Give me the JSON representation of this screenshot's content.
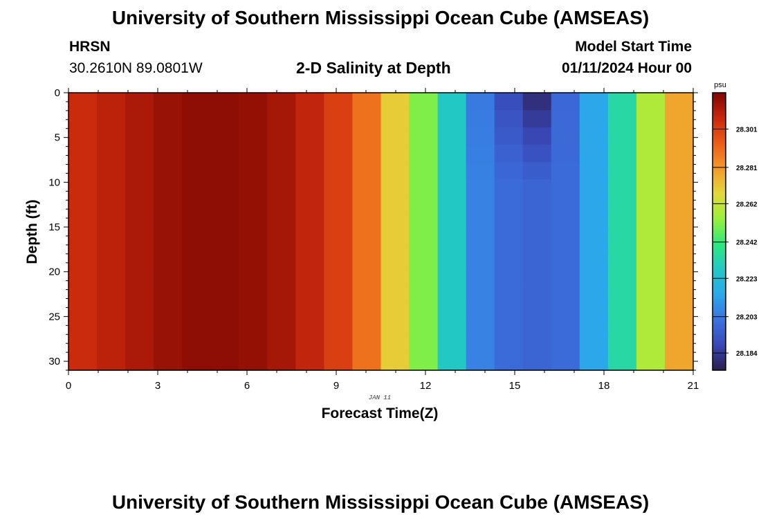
{
  "page": {
    "title_top": "University of Southern Mississippi Ocean Cube (AMSEAS)",
    "title_bottom": "University of Southern Mississippi Ocean Cube (AMSEAS)",
    "station": "HRSN",
    "coordinates": "30.2610N  89.0801W",
    "plot_title": "2-D Salinity at Depth",
    "model_start_label": "Model Start Time",
    "model_start_value": "01/11/2024 Hour 00",
    "date_tag": "JAN 11"
  },
  "chart_data": {
    "type": "heatmap",
    "title": "2-D Salinity at Depth",
    "xlabel": "Forecast Time(Z)",
    "ylabel": "Depth (ft)",
    "xlim": [
      0,
      21
    ],
    "ylim": [
      0,
      31
    ],
    "x_ticks": [
      0,
      3,
      6,
      9,
      12,
      15,
      18,
      21
    ],
    "y_ticks": [
      0,
      5,
      10,
      15,
      20,
      25,
      30
    ],
    "colorbar": {
      "unit": "psu",
      "ticks": [
        "28.301",
        "28.281",
        "28.262",
        "28.242",
        "28.223",
        "28.203",
        "28.184"
      ],
      "range": [
        28.175,
        28.32
      ],
      "colors": [
        "#2a1e4e",
        "#3948b8",
        "#3b73e0",
        "#2ba9ea",
        "#22c8c6",
        "#2ee87c",
        "#98f03a",
        "#e4d83a",
        "#f39a2a",
        "#ec5c18",
        "#c8280c",
        "#7d0502"
      ]
    },
    "time_bins": [
      0,
      1,
      2,
      3,
      4,
      5,
      6,
      7,
      8,
      9,
      10,
      11,
      12,
      13,
      14,
      15,
      16,
      17,
      18,
      19,
      20,
      21
    ],
    "salinity_surface": [
      28.306,
      28.309,
      28.312,
      28.315,
      28.317,
      28.317,
      28.316,
      28.313,
      28.308,
      28.301,
      28.289,
      28.27,
      28.251,
      28.228,
      28.203,
      28.189,
      28.179,
      28.198,
      28.214,
      28.234,
      28.258,
      28.278
    ],
    "salinity_deep": [
      28.306,
      28.309,
      28.312,
      28.315,
      28.317,
      28.317,
      28.316,
      28.313,
      28.308,
      28.301,
      28.289,
      28.27,
      28.251,
      28.228,
      28.205,
      28.199,
      28.197,
      28.199,
      28.214,
      28.234,
      28.258,
      28.278
    ]
  }
}
